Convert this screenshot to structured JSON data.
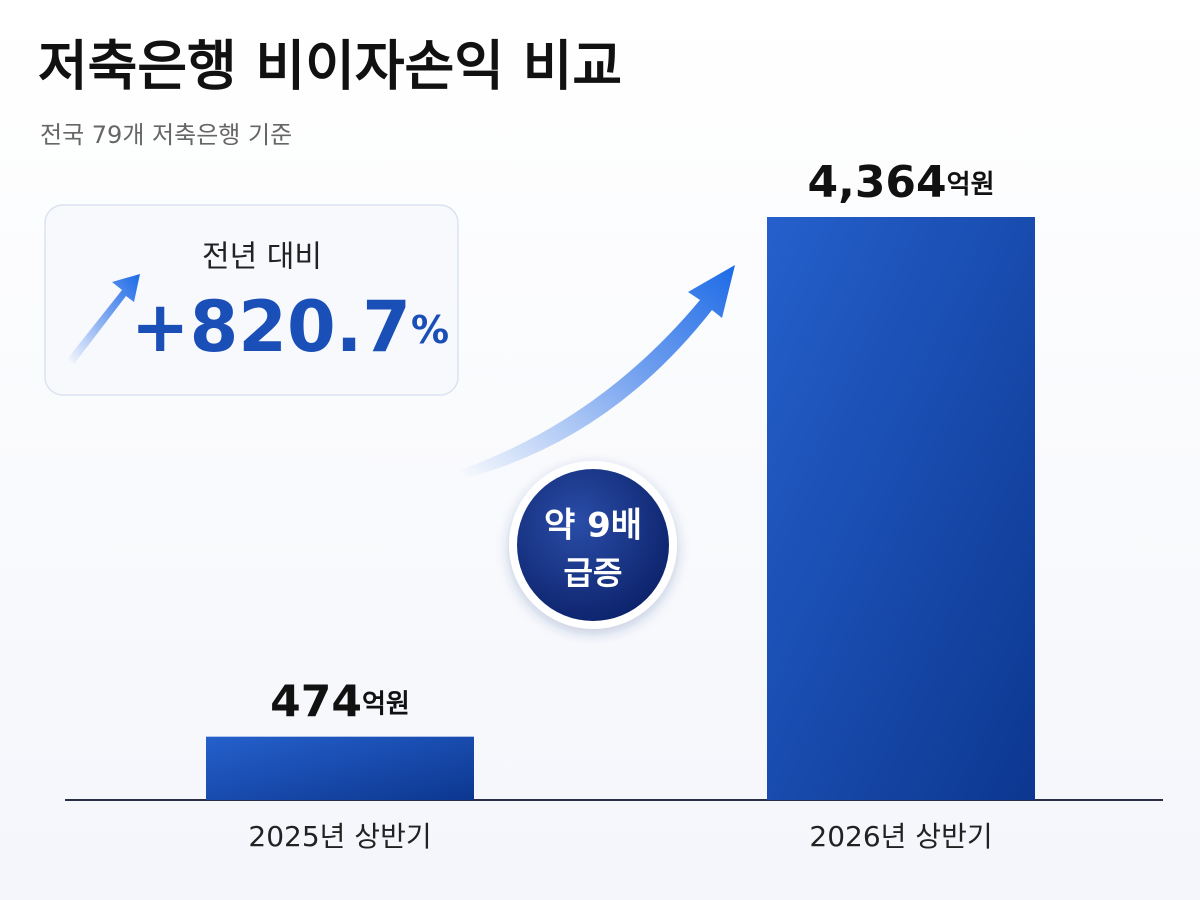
{
  "chart_data": {
    "type": "bar",
    "title": "저축은행 비이자손익 비교",
    "subtitle": "전국 79개 저축은행 기준",
    "categories": [
      "2025년 상반기",
      "2026년 상반기"
    ],
    "values": [
      474,
      4364
    ],
    "value_labels": [
      "474",
      "4,364"
    ],
    "value_unit": "억원",
    "color": "#1f4fb8",
    "callout": {
      "title": "전년 대비",
      "value": "+820.7",
      "unit": "%"
    },
    "badge": {
      "line1": "약 9배",
      "line2": "급증"
    }
  }
}
